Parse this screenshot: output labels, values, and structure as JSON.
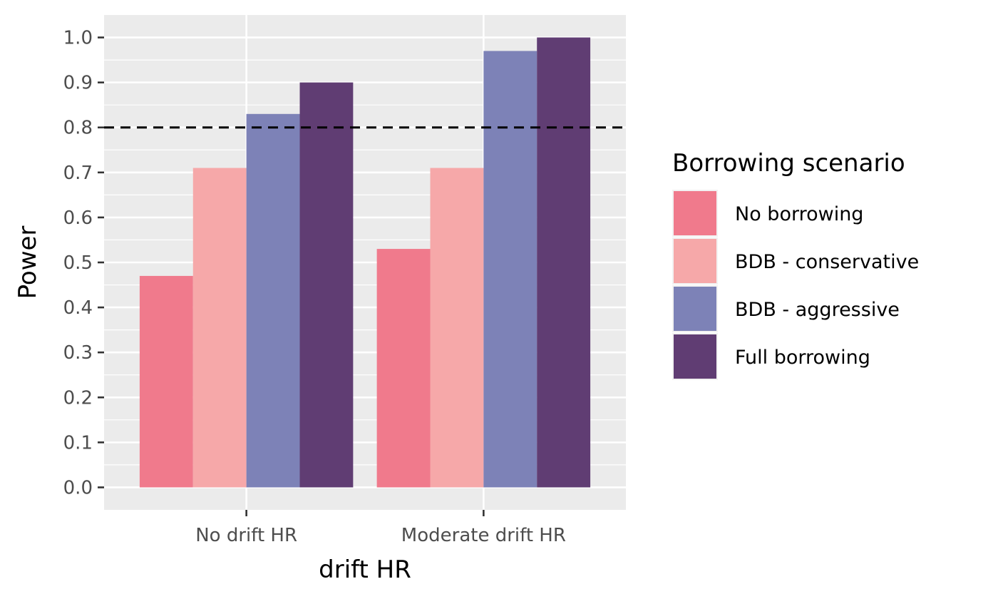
{
  "chart_data": {
    "type": "bar",
    "categories": [
      "No drift HR",
      "Moderate drift HR"
    ],
    "series": [
      {
        "name": "No borrowing",
        "values": [
          0.47,
          0.53
        ],
        "color": "#F07A8C"
      },
      {
        "name": "BDB - conservative",
        "values": [
          0.71,
          0.71
        ],
        "color": "#F6A8A9"
      },
      {
        "name": "BDB - aggressive",
        "values": [
          0.83,
          0.97
        ],
        "color": "#7D82B7"
      },
      {
        "name": "Full borrowing",
        "values": [
          0.9,
          1.0
        ],
        "color": "#603D73"
      }
    ],
    "xlabel": "drift HR",
    "ylabel": "Power",
    "ylim": [
      -0.05,
      1.05
    ],
    "yticks": [
      0.0,
      0.1,
      0.2,
      0.3,
      0.4,
      0.5,
      0.6,
      0.7,
      0.8,
      0.9,
      1.0
    ],
    "ytick_labels": [
      "0.0",
      "0.1",
      "0.2",
      "0.3",
      "0.4",
      "0.5",
      "0.6",
      "0.7",
      "0.8",
      "0.9",
      "1.0"
    ],
    "reference_line": {
      "y": 0.8,
      "style": "dashed",
      "color": "#000000"
    },
    "legend": {
      "title": "Borrowing scenario",
      "position": "right"
    },
    "grid": true,
    "panel_background": "#EBEBEB"
  }
}
